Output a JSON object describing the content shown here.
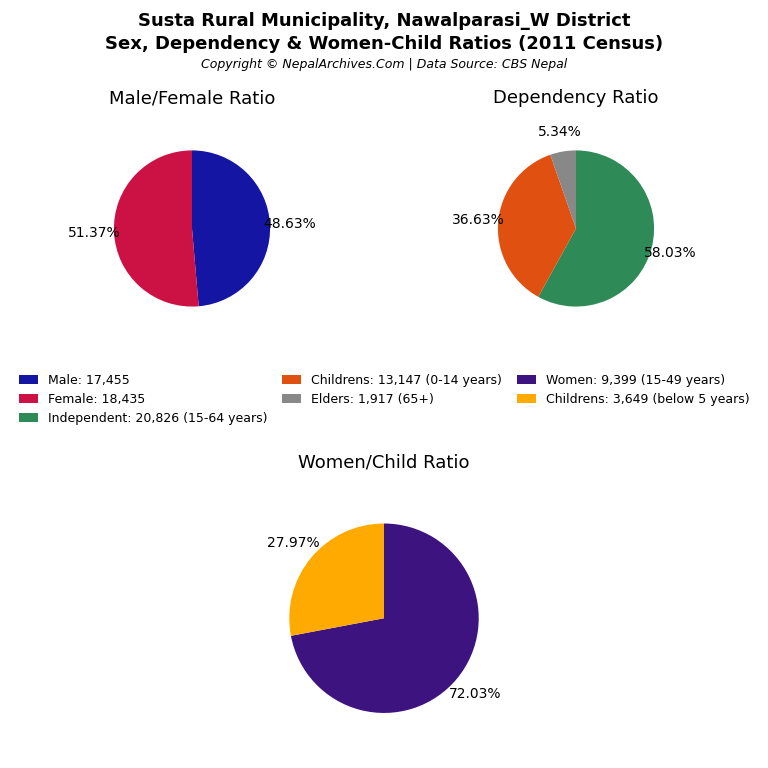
{
  "title": "Susta Rural Municipality, Nawalparasi_W District",
  "subtitle": "Sex, Dependency & Women-Child Ratios (2011 Census)",
  "annotations": [
    "Copyright © NepalArchives.Com | Data Source: CBS Nepal"
  ],
  "chart_data": [
    {
      "type": "pie",
      "title": "Male/Female Ratio",
      "categories": [
        "Male: 17,455",
        "Female: 18,435"
      ],
      "values": [
        48.63,
        51.37
      ],
      "value_labels": [
        "48.63%",
        "51.37%"
      ],
      "colors": [
        "#1515a3",
        "#cc1144"
      ],
      "data_labels": true
    },
    {
      "type": "pie",
      "title": "Dependency Ratio",
      "categories": [
        "Independent: 20,826 (15-64 years)",
        "Childrens: 13,147 (0-14 years)",
        "Elders: 1,917 (65+)"
      ],
      "values": [
        58.03,
        36.63,
        5.34
      ],
      "value_labels": [
        "58.03%",
        "36.63%",
        "5.34%"
      ],
      "colors": [
        "#2e8b57",
        "#e05010",
        "#888888"
      ],
      "data_labels": true
    },
    {
      "type": "pie",
      "title": "Women/Child Ratio",
      "categories": [
        "Women: 9,399 (15-49 years)",
        "Childrens: 3,649 (below 5 years)"
      ],
      "values": [
        72.03,
        27.97
      ],
      "value_labels": [
        "72.03%",
        "27.97%"
      ],
      "colors": [
        "#3d1380",
        "#ffaa00"
      ],
      "data_labels": true
    }
  ]
}
